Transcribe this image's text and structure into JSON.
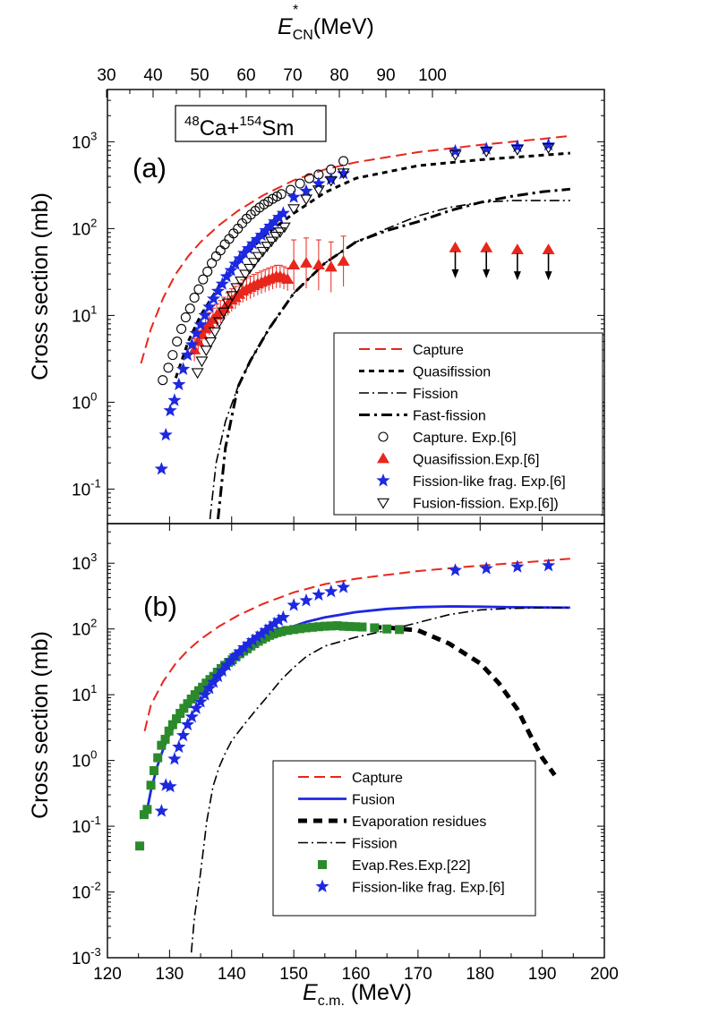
{
  "top_axis": {
    "label_main": "E",
    "label_sup": "*",
    "label_sub": "CN",
    "label_unit": "(MeV)",
    "ticks": [
      30,
      40,
      50,
      60,
      70,
      80,
      90,
      100
    ]
  },
  "x_axis": {
    "label_main": "E",
    "label_sub": "c.m.",
    "label_unit": " (MeV)",
    "ticks": [
      120,
      130,
      140,
      150,
      160,
      170,
      180,
      190,
      200
    ]
  },
  "chart_data": [
    {
      "type": "line",
      "panel_label": "(a)",
      "reaction": {
        "a1": "48",
        "e1": "Ca+",
        "a2": "154",
        "e2": "Sm"
      },
      "ylabel": "Cross section (mb)",
      "xlim": [
        120,
        200
      ],
      "ylim": [
        0.04,
        4000
      ],
      "yscale": "log",
      "legend_position": "bottom-right",
      "series": [
        {
          "name": "Capture",
          "kind": "line",
          "style": "dashed",
          "color": "#e8261c",
          "x": [
            125.4,
            127,
            129,
            131,
            133,
            135,
            138,
            141,
            145,
            150,
            155,
            160,
            170,
            180,
            190,
            194.5
          ],
          "y": [
            2.8,
            7,
            16,
            30,
            48,
            70,
            110,
            160,
            240,
            360,
            480,
            580,
            760,
            920,
            1080,
            1170
          ]
        },
        {
          "name": "Quasifission",
          "kind": "line",
          "style": "short-dash",
          "color": "#000000",
          "x": [
            131,
            133,
            135,
            138,
            141,
            145,
            150,
            155,
            160,
            170,
            180,
            190,
            194.5
          ],
          "y": [
            1.9,
            5,
            10,
            22,
            40,
            80,
            150,
            260,
            380,
            530,
            620,
            700,
            740
          ]
        },
        {
          "name": "Fission",
          "kind": "line",
          "style": "dash-dot",
          "color": "#000000",
          "x": [
            136.5,
            137.5,
            139,
            141,
            143,
            146,
            150,
            155,
            160,
            165,
            170,
            175,
            180,
            185,
            190,
            194.5
          ],
          "y": [
            0.045,
            0.2,
            0.6,
            1.5,
            3,
            7,
            18,
            40,
            70,
            100,
            140,
            175,
            200,
            210,
            210,
            210
          ]
        },
        {
          "name": "Fast-fission",
          "kind": "line",
          "style": "dash-dot-thick",
          "color": "#000000",
          "x": [
            137.8,
            139,
            141,
            143,
            146,
            150,
            155,
            160,
            165,
            170,
            175,
            180,
            185,
            190,
            194.5
          ],
          "y": [
            0.045,
            0.3,
            1.5,
            3,
            7,
            18,
            40,
            70,
            95,
            120,
            160,
            200,
            235,
            265,
            285
          ]
        },
        {
          "name": "Capture. Exp.[6]",
          "kind": "marker",
          "marker": "circle",
          "color": "#000000",
          "x": [
            128.9,
            129.8,
            130.5,
            131.2,
            131.9,
            132.6,
            133.3,
            134,
            134.7,
            135.4,
            136.1,
            136.8,
            137.5,
            138.2,
            138.9,
            139.6,
            140.3,
            141,
            141.7,
            142.4,
            143.1,
            143.8,
            144.5,
            145.2,
            145.9,
            146.6,
            147.3,
            148,
            149.5,
            151,
            152.5,
            154,
            156,
            158
          ],
          "y": [
            1.8,
            2.5,
            3.5,
            5,
            7,
            9.5,
            12,
            16,
            20,
            26,
            32,
            40,
            48,
            56,
            66,
            76,
            88,
            100,
            115,
            130,
            145,
            160,
            175,
            190,
            205,
            220,
            235,
            250,
            280,
            330,
            380,
            420,
            480,
            600
          ]
        },
        {
          "name": "Quasifission.Exp.[6]",
          "kind": "marker",
          "marker": "triangle-up",
          "color": "#e8261c",
          "error_bars": true,
          "x": [
            134,
            134.6,
            135.2,
            135.8,
            136.4,
            137,
            137.6,
            138.2,
            138.8,
            139.4,
            140,
            140.6,
            141.2,
            141.8,
            142.4,
            143,
            143.6,
            144.2,
            144.8,
            145.4,
            146,
            146.6,
            147.2,
            147.8,
            148.4,
            149,
            150,
            152,
            154,
            156,
            158
          ],
          "y": [
            4,
            5,
            6,
            7,
            8,
            9,
            10,
            11,
            12,
            13.5,
            15,
            16,
            17.5,
            19,
            20,
            21,
            22,
            23,
            24,
            25,
            26,
            27,
            28,
            28,
            27,
            26,
            38,
            40,
            38,
            36,
            42
          ]
        },
        {
          "name": "Fission-like frag. Exp.[6]",
          "kind": "marker",
          "marker": "star",
          "color": "#1d28e0",
          "x": [
            128.7,
            129.4,
            130.1,
            130.8,
            131.5,
            132.2,
            132.9,
            133.6,
            134.3,
            135,
            135.7,
            136.4,
            137.1,
            137.8,
            138.5,
            139.2,
            139.9,
            140.6,
            141.3,
            142,
            142.7,
            143.4,
            144.1,
            144.8,
            145.5,
            146.2,
            146.9,
            147.6,
            148.3,
            150,
            152,
            154,
            156,
            158,
            176,
            181,
            186,
            191
          ],
          "y": [
            0.17,
            0.42,
            0.8,
            1.05,
            1.6,
            2.4,
            3.5,
            4.6,
            6.2,
            7.8,
            10,
            12.5,
            15.5,
            19,
            23,
            28,
            33,
            39,
            45,
            52,
            59,
            67,
            75,
            84,
            95,
            107,
            120,
            135,
            150,
            230,
            270,
            330,
            370,
            430,
            780,
            830,
            880,
            920
          ]
        },
        {
          "name": "Fusion-fission. Exp.[6])",
          "kind": "marker",
          "marker": "triangle-down",
          "color": "#000000",
          "x": [
            134.5,
            135.2,
            135.9,
            136.6,
            137.3,
            138,
            138.7,
            139.4,
            140.1,
            140.8,
            141.5,
            142.2,
            142.9,
            143.6,
            144.3,
            145,
            145.7,
            146.4,
            147.1,
            147.8,
            148.5,
            150,
            152,
            154,
            156,
            158,
            176,
            181,
            186,
            191
          ],
          "y": [
            2.2,
            3,
            4,
            5,
            6.5,
            8.5,
            11,
            14,
            17,
            21,
            25,
            30,
            35,
            41,
            48,
            55,
            63,
            72,
            82,
            92,
            105,
            170,
            220,
            280,
            360,
            440,
            710,
            780,
            820,
            860
          ]
        },
        {
          "name": "",
          "kind": "upper-limit",
          "marker": "triangle-up-arrow",
          "color": "#e8261c",
          "x": [
            176,
            181,
            186,
            191
          ],
          "y": [
            60,
            60,
            57,
            57
          ]
        }
      ]
    },
    {
      "type": "line",
      "panel_label": "(b)",
      "ylabel": "Cross section (mb)",
      "xlim": [
        120,
        200
      ],
      "ylim": [
        0.001,
        4000
      ],
      "yscale": "log",
      "legend_position": "bottom-right",
      "series": [
        {
          "name": "Capture",
          "kind": "line",
          "style": "dashed",
          "color": "#e8261c",
          "x": [
            126,
            127,
            129,
            131,
            133,
            135,
            138,
            141,
            145,
            150,
            155,
            160,
            170,
            180,
            190,
            194.5
          ],
          "y": [
            2.8,
            7,
            16,
            30,
            48,
            70,
            110,
            160,
            240,
            360,
            480,
            580,
            760,
            920,
            1080,
            1170
          ]
        },
        {
          "name": "Fusion",
          "kind": "line",
          "style": "solid",
          "color": "#1d28e0",
          "x": [
            126.5,
            127,
            128,
            129,
            130,
            131,
            132,
            133,
            134,
            135,
            136,
            137,
            138,
            139,
            140,
            141,
            142,
            143,
            144,
            145,
            146,
            147,
            148,
            150,
            152,
            155,
            160,
            165,
            170,
            175,
            180,
            185,
            190,
            194.5
          ],
          "y": [
            0.2,
            0.35,
            0.8,
            1.5,
            2.5,
            3.6,
            5,
            6.8,
            9,
            12,
            15,
            19,
            24,
            29,
            35,
            42,
            50,
            58,
            66,
            74,
            82,
            90,
            97,
            110,
            128,
            150,
            180,
            202,
            215,
            220,
            218,
            214,
            212,
            211
          ]
        },
        {
          "name": "Evaporation residues",
          "kind": "line",
          "style": "thick-dash",
          "color": "#000000",
          "x": [
            148,
            152,
            156,
            160,
            165,
            170,
            175,
            180,
            183,
            186,
            188,
            190,
            192
          ],
          "y": [
            100,
            105,
            110,
            108,
            105,
            95,
            60,
            30,
            15,
            6,
            2.5,
            1.1,
            0.6
          ]
        },
        {
          "name": "Fission",
          "kind": "line",
          "style": "dash-dot",
          "color": "#000000",
          "x": [
            133.5,
            134,
            135,
            136,
            137,
            138,
            139,
            140,
            142,
            144,
            146,
            148,
            150,
            152,
            155,
            160,
            165,
            170,
            175,
            180,
            185,
            190,
            194.5
          ],
          "y": [
            0.0012,
            0.004,
            0.02,
            0.12,
            0.4,
            0.8,
            1.3,
            2,
            3.5,
            6,
            10,
            17,
            26,
            38,
            55,
            75,
            95,
            125,
            165,
            195,
            205,
            210,
            210
          ]
        },
        {
          "name": "Evap.Res.Exp.[22]",
          "kind": "marker",
          "marker": "square",
          "color": "#2b8a2b",
          "x": [
            125.2,
            125.9,
            126.4,
            127,
            127.5,
            128.1,
            128.7,
            129.3,
            129.9,
            130.5,
            131.1,
            131.7,
            132.3,
            132.9,
            133.5,
            134.1,
            134.7,
            135.3,
            135.9,
            136.5,
            137.1,
            137.7,
            138.3,
            138.9,
            139.5,
            140.1,
            140.7,
            141.3,
            141.9,
            142.5,
            143.1,
            143.7,
            144.3,
            144.9,
            145.5,
            146.1,
            146.7,
            147.3,
            148,
            149,
            150,
            151,
            152,
            153,
            154,
            155,
            156,
            157,
            158,
            159,
            160,
            161,
            163,
            165,
            167
          ],
          "y": [
            0.05,
            0.15,
            0.18,
            0.42,
            0.7,
            1.1,
            1.7,
            2.1,
            2.8,
            3.5,
            4.3,
            5.2,
            6.2,
            7.3,
            8.6,
            10,
            11.5,
            13,
            15,
            17,
            19,
            22,
            25,
            28,
            31,
            34,
            38,
            42,
            46,
            50,
            55,
            60,
            65,
            70,
            75,
            80,
            84,
            88,
            91,
            95,
            98,
            101,
            104,
            106,
            108,
            110,
            111,
            112,
            110,
            109,
            108,
            107,
            104,
            100,
            98
          ]
        },
        {
          "name": "Fission-like frag. Exp.[6]",
          "kind": "marker",
          "marker": "star",
          "color": "#1d28e0",
          "x": [
            128.7,
            129.4,
            130.1,
            130.8,
            131.5,
            132.2,
            132.9,
            133.6,
            134.3,
            135,
            135.7,
            136.4,
            137.1,
            137.8,
            138.5,
            139.2,
            139.9,
            140.6,
            141.3,
            142,
            142.7,
            143.4,
            144.1,
            144.8,
            145.5,
            146.2,
            146.9,
            147.6,
            148.3,
            150,
            152,
            154,
            156,
            158,
            176,
            181,
            186,
            191
          ],
          "y": [
            0.17,
            0.42,
            0.4,
            1.05,
            1.6,
            2.4,
            3.5,
            4.6,
            6.2,
            7.8,
            10,
            12.5,
            15.5,
            19,
            23,
            28,
            33,
            39,
            45,
            52,
            59,
            67,
            75,
            84,
            95,
            107,
            120,
            135,
            150,
            230,
            270,
            330,
            370,
            430,
            780,
            830,
            880,
            920
          ]
        }
      ]
    }
  ]
}
